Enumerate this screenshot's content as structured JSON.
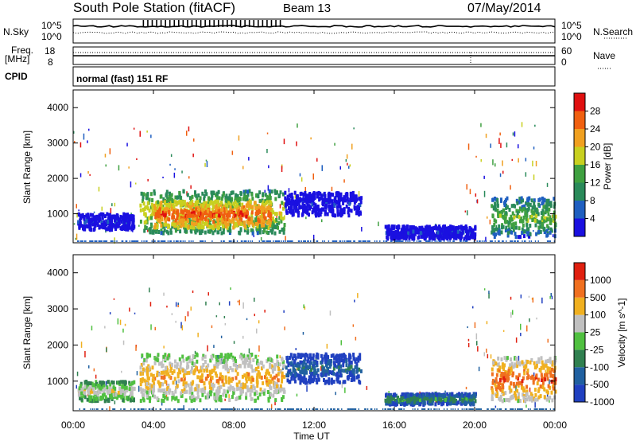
{
  "header": {
    "station": "South Pole Station (fitACF)",
    "beam": "Beam 13",
    "date": "07/May/2014"
  },
  "left_labels": {
    "nsky": "N.Sky",
    "freq_line1": "Freq.",
    "freq_line2": "[MHz]",
    "cpid": "CPID"
  },
  "right_labels": {
    "nsearch": "N.Search",
    "nave": "Nave"
  },
  "noise_axis": {
    "left_top": "10^5",
    "left_bottom": "10^0",
    "right_top": "10^5",
    "right_bottom": "10^0"
  },
  "freq_axis": {
    "left_top": "18",
    "left_bottom": "8",
    "right_top": "60",
    "right_bottom": "0"
  },
  "cpid_text": "normal (fast) 151 RF",
  "xaxis": {
    "label": "Time UT",
    "ticks": [
      "00:00",
      "04:00",
      "08:00",
      "12:00",
      "16:00",
      "20:00",
      "00:00"
    ]
  },
  "power_panel": {
    "ylabel": "Slant Range [km]",
    "yticks": [
      "1000",
      "2000",
      "3000",
      "4000"
    ],
    "colorbar_label": "Power [dB]",
    "colorbar_ticks": [
      "4",
      "8",
      "12",
      "16",
      "20",
      "24",
      "28"
    ],
    "colors": [
      "#1a10e0",
      "#1f5fc0",
      "#2a8a5a",
      "#3fa040",
      "#c8d020",
      "#f0a020",
      "#f06010",
      "#e01010"
    ]
  },
  "velocity_panel": {
    "ylabel": "Slant Range [km]",
    "yticks": [
      "1000",
      "2000",
      "3000",
      "4000"
    ],
    "colorbar_label": "Velocity [m s^-1]",
    "colorbar_ticks": [
      "1000",
      "500",
      "100",
      "25",
      "-25",
      "-100",
      "-500",
      "-1000"
    ],
    "colors": [
      "#2040c0",
      "#2060a0",
      "#308050",
      "#50c040",
      "#c0c0c0",
      "#f0b020",
      "#f07020",
      "#e02010"
    ]
  },
  "chart_data": {
    "type": "heatmap",
    "x_range_hours": [
      0,
      24
    ],
    "y_range_km": [
      180,
      4500
    ],
    "power_regions": [
      {
        "t0": 0.2,
        "t1": 3.0,
        "r0": 600,
        "r1": 1050,
        "level": 1
      },
      {
        "t0": 3.3,
        "t1": 10.5,
        "r0": 500,
        "r1": 1700,
        "level": 5
      },
      {
        "t0": 4.0,
        "t1": 9.8,
        "r0": 650,
        "r1": 1400,
        "level": 7
      },
      {
        "t0": 10.5,
        "t1": 14.3,
        "r0": 1000,
        "r1": 1650,
        "level": 1
      },
      {
        "t0": 15.5,
        "t1": 20.0,
        "r0": 350,
        "r1": 700,
        "level": 1
      },
      {
        "t0": 20.8,
        "t1": 24.0,
        "r0": 400,
        "r1": 1500,
        "level": 4
      }
    ],
    "velocity_regions": [
      {
        "t0": 0.2,
        "t1": 3.0,
        "r0": 500,
        "r1": 1050,
        "level": 5
      },
      {
        "t0": 3.3,
        "t1": 10.5,
        "r0": 500,
        "r1": 1800,
        "level": 6
      },
      {
        "t0": 10.5,
        "t1": 14.3,
        "r0": 1000,
        "r1": 1800,
        "level": 2
      },
      {
        "t0": 15.5,
        "t1": 20.0,
        "r0": 400,
        "r1": 700,
        "level": 3
      },
      {
        "t0": 20.8,
        "t1": 24.0,
        "r0": 500,
        "r1": 1700,
        "level": 7
      }
    ]
  }
}
